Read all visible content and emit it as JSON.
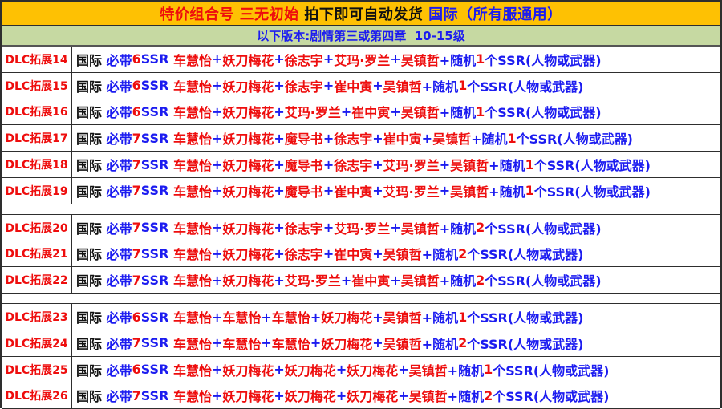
{
  "banner": {
    "segments": [
      {
        "text": "特价组合号 三无初始 ",
        "color": "red"
      },
      {
        "text": "拍下即可自动发货 ",
        "color": "black"
      },
      {
        "text": "国际（所有服通用）",
        "color": "blue"
      }
    ]
  },
  "subbanner": {
    "text": "以下版本:剧情第三或第四章  10-15级"
  },
  "labels": {
    "region": "国际 ",
    "must": "必带",
    "ssr_suffix": "SSR ",
    "plus": "+",
    "random": "+随机",
    "suffix": "个SSR(人物或武器)"
  },
  "colors": {
    "red": "#ee0d0d",
    "blue": "#1c1cf0",
    "black": "#111111",
    "banner_bg": "#fec103",
    "subbanner_bg": "#c6d9a2"
  },
  "groups": [
    {
      "rows": [
        {
          "id": "DLC拓展14",
          "ssr_count": "6",
          "names": [
            "车慧怡",
            "妖刀梅花",
            "徐志宇",
            "艾玛·罗兰",
            "吴镇哲"
          ],
          "random_count": "1"
        },
        {
          "id": "DLC拓展15",
          "ssr_count": "6",
          "names": [
            "车慧怡",
            "妖刀梅花",
            "徐志宇",
            "崔中寅",
            "吴镇哲"
          ],
          "random_count": "1"
        },
        {
          "id": "DLC拓展16",
          "ssr_count": "6",
          "names": [
            "车慧怡",
            "妖刀梅花",
            "艾玛·罗兰",
            "崔中寅",
            "吴镇哲"
          ],
          "random_count": "1"
        },
        {
          "id": "DLC拓展17",
          "ssr_count": "7",
          "names": [
            "车慧怡",
            "妖刀梅花",
            "魔导书",
            "徐志宇",
            "崔中寅",
            "吴镇哲"
          ],
          "random_count": "1"
        },
        {
          "id": "DLC拓展18",
          "ssr_count": "7",
          "names": [
            "车慧怡",
            "妖刀梅花",
            "魔导书",
            "徐志宇",
            "艾玛·罗兰",
            "吴镇哲"
          ],
          "random_count": "1"
        },
        {
          "id": "DLC拓展19",
          "ssr_count": "7",
          "names": [
            "车慧怡",
            "妖刀梅花",
            "魔导书",
            "崔中寅",
            "艾玛·罗兰",
            "吴镇哲"
          ],
          "random_count": "1"
        }
      ]
    },
    {
      "rows": [
        {
          "id": "DLC拓展20",
          "ssr_count": "7",
          "names": [
            "车慧怡",
            "妖刀梅花",
            "徐志宇",
            "艾玛·罗兰",
            "吴镇哲"
          ],
          "random_count": "2"
        },
        {
          "id": "DLC拓展21",
          "ssr_count": "7",
          "names": [
            "车慧怡",
            "妖刀梅花",
            "徐志宇",
            "崔中寅",
            "吴镇哲"
          ],
          "random_count": "2"
        },
        {
          "id": "DLC拓展22",
          "ssr_count": "7",
          "names": [
            "车慧怡",
            "妖刀梅花",
            "艾玛·罗兰",
            "崔中寅",
            "吴镇哲"
          ],
          "random_count": "2"
        }
      ]
    },
    {
      "rows": [
        {
          "id": "DLC拓展23",
          "ssr_count": "6",
          "names": [
            "车慧怡",
            "车慧怡",
            "车慧怡",
            "妖刀梅花",
            "吴镇哲"
          ],
          "random_count": "1"
        },
        {
          "id": "DLC拓展24",
          "ssr_count": "7",
          "names": [
            "车慧怡",
            "车慧怡",
            "车慧怡",
            "妖刀梅花",
            "吴镇哲"
          ],
          "random_count": "2"
        },
        {
          "id": "DLC拓展25",
          "ssr_count": "6",
          "names": [
            "车慧怡",
            "妖刀梅花",
            "妖刀梅花",
            "妖刀梅花",
            "吴镇哲"
          ],
          "random_count": "1"
        },
        {
          "id": "DLC拓展26",
          "ssr_count": "7",
          "names": [
            "车慧怡",
            "妖刀梅花",
            "妖刀梅花",
            "妖刀梅花",
            "吴镇哲"
          ],
          "random_count": "2"
        }
      ]
    }
  ]
}
